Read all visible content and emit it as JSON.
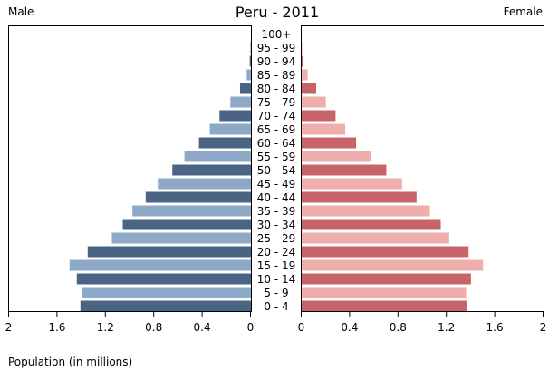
{
  "chart_data": {
    "type": "bar",
    "title": "Peru - 2011",
    "left_label": "Male",
    "right_label": "Female",
    "xlabel": "Population (in millions)",
    "xlim": [
      0,
      2
    ],
    "x_ticks": [
      "2",
      "1.6",
      "1.2",
      "0.8",
      "0.4",
      "0",
      "0",
      "0.4",
      "0.8",
      "1.2",
      "1.6",
      "2"
    ],
    "age_groups": [
      "100+",
      "95 - 99",
      "90 - 94",
      "85 - 89",
      "80 - 84",
      "75 - 79",
      "70 - 74",
      "65 - 69",
      "60 - 64",
      "55 - 59",
      "50 - 54",
      "45 - 49",
      "40 - 44",
      "35 - 39",
      "30 - 34",
      "25 - 29",
      "20 - 24",
      "15 - 19",
      "10 - 14",
      "5 - 9",
      "0 - 4"
    ],
    "series": [
      {
        "name": "Male",
        "values": [
          0.0,
          0.005,
          0.01,
          0.035,
          0.09,
          0.17,
          0.26,
          0.34,
          0.43,
          0.55,
          0.65,
          0.77,
          0.87,
          0.98,
          1.06,
          1.15,
          1.35,
          1.5,
          1.44,
          1.4,
          1.41
        ]
      },
      {
        "name": "Female",
        "values": [
          0.0,
          0.005,
          0.015,
          0.05,
          0.12,
          0.2,
          0.28,
          0.36,
          0.45,
          0.57,
          0.7,
          0.83,
          0.95,
          1.06,
          1.15,
          1.22,
          1.38,
          1.5,
          1.4,
          1.36,
          1.37
        ]
      }
    ],
    "colors": {
      "male_dark": "#4a6486",
      "male_light": "#8ea9c8",
      "female_dark": "#c8636a",
      "female_light": "#efadac"
    },
    "grid": false
  }
}
